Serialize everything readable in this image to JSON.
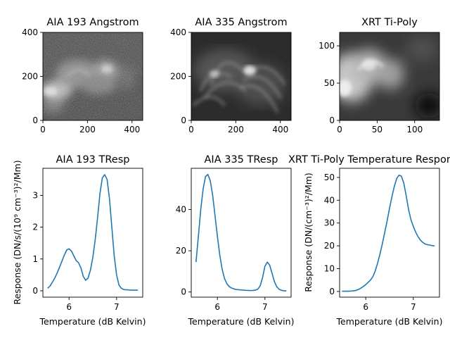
{
  "images": [
    {
      "title": "AIA 193 Angstrom",
      "xticks": [
        "0",
        "200",
        "400"
      ],
      "yticks": [
        "0",
        "200",
        "400"
      ],
      "xlim": [
        0,
        448
      ],
      "ylim": [
        0,
        400
      ],
      "xtick_values": [
        0,
        200,
        400
      ],
      "ytick_values": [
        0,
        200,
        400
      ],
      "style": "noisy"
    },
    {
      "title": "AIA 335 Angstrom",
      "xticks": [
        "0",
        "200",
        "400"
      ],
      "yticks": [
        "0",
        "200",
        "400"
      ],
      "xlim": [
        0,
        448
      ],
      "ylim": [
        0,
        400
      ],
      "xtick_values": [
        0,
        200,
        400
      ],
      "ytick_values": [
        0,
        200,
        400
      ],
      "style": "loops"
    },
    {
      "title": "XRT Ti-Poly",
      "xticks": [
        "0",
        "50",
        "100"
      ],
      "yticks": [
        "0",
        "50",
        "100"
      ],
      "xlim": [
        0,
        133
      ],
      "ylim": [
        0,
        118
      ],
      "xtick_values": [
        0,
        50,
        100
      ],
      "ytick_values": [
        0,
        50,
        100
      ],
      "style": "smooth"
    }
  ],
  "chart_data": [
    {
      "type": "line",
      "title": "AIA 193 TResp",
      "xlabel": "Temperature (dB Kelvin)",
      "ylabel": "Response (DN/s/(10⁹ cm⁻³)²/Mm)",
      "xlim": [
        5.45,
        7.55
      ],
      "ylim": [
        -0.2,
        3.85
      ],
      "xticks": [
        "6",
        "7"
      ],
      "xtick_values": [
        6,
        7
      ],
      "yticks": [
        "0",
        "1",
        "2",
        "3"
      ],
      "ytick_values": [
        0,
        1,
        2,
        3
      ],
      "color": "#1f77b4",
      "x": [
        5.55,
        5.6,
        5.65,
        5.7,
        5.75,
        5.8,
        5.85,
        5.9,
        5.95,
        6.0,
        6.05,
        6.1,
        6.15,
        6.2,
        6.25,
        6.3,
        6.35,
        6.4,
        6.45,
        6.5,
        6.55,
        6.6,
        6.65,
        6.7,
        6.75,
        6.8,
        6.85,
        6.9,
        6.95,
        7.0,
        7.05,
        7.1,
        7.15,
        7.2,
        7.25,
        7.3,
        7.35,
        7.4,
        7.45
      ],
      "y": [
        0.08,
        0.15,
        0.27,
        0.4,
        0.56,
        0.74,
        0.93,
        1.12,
        1.28,
        1.32,
        1.25,
        1.1,
        0.95,
        0.88,
        0.72,
        0.45,
        0.33,
        0.4,
        0.65,
        1.05,
        1.6,
        2.3,
        3.05,
        3.55,
        3.65,
        3.5,
        2.9,
        2.0,
        1.1,
        0.5,
        0.18,
        0.08,
        0.04,
        0.03,
        0.03,
        0.02,
        0.02,
        0.02,
        0.02
      ]
    },
    {
      "type": "line",
      "title": "AIA 335 TResp",
      "xlabel": "Temperature (dB Kelvin)",
      "ylabel": "",
      "xlim": [
        5.45,
        7.55
      ],
      "ylim": [
        -2.5,
        60
      ],
      "xticks": [
        "6",
        "7"
      ],
      "xtick_values": [
        6,
        7
      ],
      "yticks": [
        "0",
        "20",
        "40"
      ],
      "ytick_values": [
        0,
        20,
        40
      ],
      "color": "#1f77b4",
      "x": [
        5.55,
        5.6,
        5.65,
        5.7,
        5.75,
        5.8,
        5.85,
        5.9,
        5.95,
        6.0,
        6.05,
        6.1,
        6.15,
        6.2,
        6.25,
        6.3,
        6.35,
        6.4,
        6.45,
        6.5,
        6.55,
        6.6,
        6.65,
        6.7,
        6.75,
        6.8,
        6.85,
        6.9,
        6.95,
        7.0,
        7.05,
        7.1,
        7.15,
        7.2,
        7.25,
        7.3,
        7.35,
        7.4,
        7.45
      ],
      "y": [
        14.5,
        27,
        40,
        50,
        56,
        57,
        54,
        47,
        37,
        27,
        18,
        11,
        6.5,
        4.0,
        2.6,
        1.9,
        1.5,
        1.2,
        1.1,
        1.0,
        0.9,
        0.8,
        0.75,
        0.7,
        0.75,
        0.9,
        1.4,
        3.0,
        7.0,
        12.5,
        14.5,
        13.0,
        9.0,
        5.0,
        2.5,
        1.3,
        0.8,
        0.6,
        0.5
      ]
    },
    {
      "type": "line",
      "title": "XRT Ti-Poly Temperature Response",
      "xlabel": "Temperature (dB Kelvin)",
      "ylabel": "Response (DN/(cm⁻³)²/Mm)",
      "xlim": [
        5.45,
        7.55
      ],
      "ylim": [
        -2.5,
        54
      ],
      "xticks": [
        "6",
        "7"
      ],
      "xtick_values": [
        6,
        7
      ],
      "yticks": [
        "0",
        "10",
        "20",
        "30",
        "40",
        "50"
      ],
      "ytick_values": [
        0,
        10,
        20,
        30,
        40,
        50
      ],
      "color": "#1f77b4",
      "x": [
        5.5,
        5.55,
        5.6,
        5.65,
        5.7,
        5.75,
        5.8,
        5.85,
        5.9,
        5.95,
        6.0,
        6.05,
        6.1,
        6.15,
        6.2,
        6.25,
        6.3,
        6.35,
        6.4,
        6.45,
        6.5,
        6.55,
        6.6,
        6.65,
        6.7,
        6.75,
        6.8,
        6.85,
        6.9,
        6.95,
        7.0,
        7.05,
        7.1,
        7.15,
        7.2,
        7.25,
        7.3,
        7.35,
        7.4,
        7.45
      ],
      "y": [
        0.1,
        0.1,
        0.1,
        0.15,
        0.2,
        0.3,
        0.5,
        0.9,
        1.5,
        2.2,
        3.0,
        4.0,
        5.0,
        6.5,
        9.0,
        12.5,
        16.5,
        21.0,
        26.0,
        31.0,
        36.5,
        41.5,
        46.0,
        49.5,
        51.0,
        50.5,
        47.5,
        42.0,
        36.0,
        31.5,
        28.5,
        26.0,
        24.0,
        22.5,
        21.5,
        20.8,
        20.5,
        20.3,
        20.1,
        20.0
      ]
    }
  ]
}
